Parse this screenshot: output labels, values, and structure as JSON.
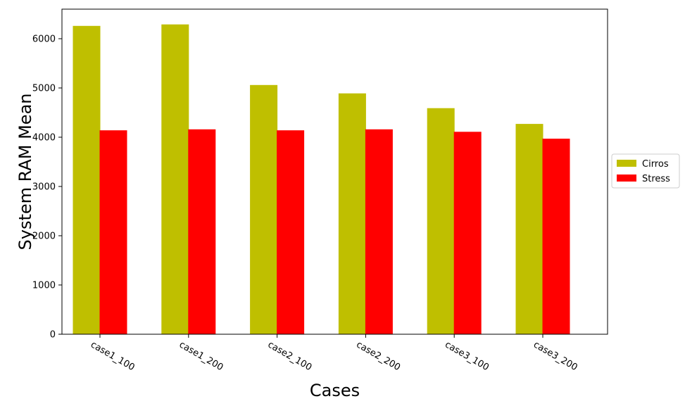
{
  "chart_data": {
    "type": "bar",
    "title": "",
    "xlabel": "Cases",
    "ylabel": "System RAM Mean",
    "categories": [
      "case1_100",
      "case1_200",
      "case2_100",
      "case2_200",
      "case3_100",
      "case3_200"
    ],
    "series": [
      {
        "name": "Cirros",
        "color": "#bfbf00",
        "values": [
          6260,
          6290,
          5060,
          4890,
          4590,
          4270
        ]
      },
      {
        "name": "Stress",
        "color": "#ff0000",
        "values": [
          4140,
          4160,
          4140,
          4160,
          4110,
          3970
        ]
      }
    ],
    "ylim": [
      0,
      6600
    ],
    "yticks": [
      0,
      1000,
      2000,
      3000,
      4000,
      5000,
      6000
    ],
    "ytick_labels": [
      "0",
      "1000",
      "2000",
      "3000",
      "4000",
      "5000",
      "6000"
    ],
    "grid": false,
    "legend_position": "right-outside-center"
  }
}
